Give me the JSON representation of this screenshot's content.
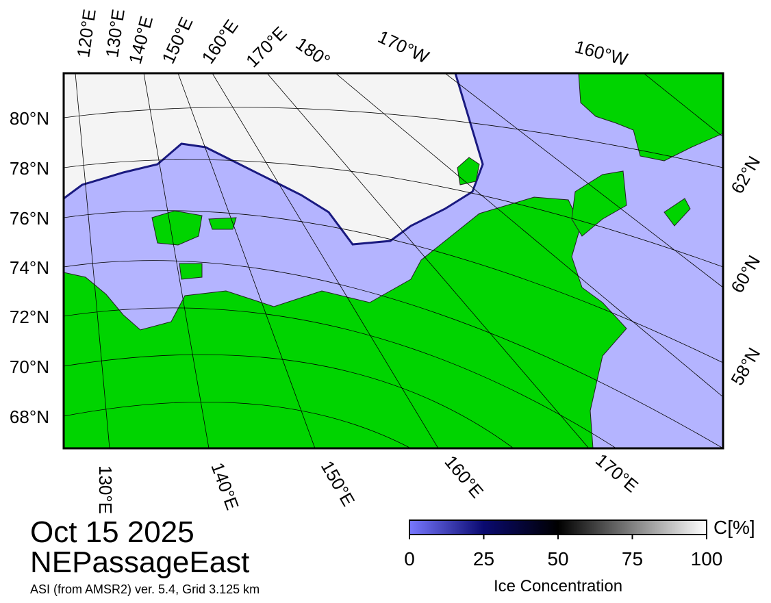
{
  "map": {
    "top_labels": [
      "120°E",
      "130°E",
      "140°E",
      "150°E",
      "160°E",
      "170°E",
      "180°",
      "170°W",
      "160°W"
    ],
    "left_labels": [
      "80°N",
      "78°N",
      "76°N",
      "74°N",
      "72°N",
      "70°N",
      "68°N"
    ],
    "right_labels": [
      "62°N",
      "60°N",
      "58°N"
    ],
    "bottom_labels": [
      "130°E",
      "140°E",
      "150°E",
      "160°E",
      "170°E"
    ]
  },
  "caption": {
    "date": "Oct 15 2025",
    "region": "NEPassageEast",
    "source": "ASI (from AMSR2) ver. 5.4,  Grid 3.125 km"
  },
  "colorbar": {
    "label": "Ice Concentration",
    "unit": "C[%]",
    "lim": [
      0,
      100
    ],
    "ticks": [
      0,
      25,
      50,
      75,
      100
    ]
  }
}
